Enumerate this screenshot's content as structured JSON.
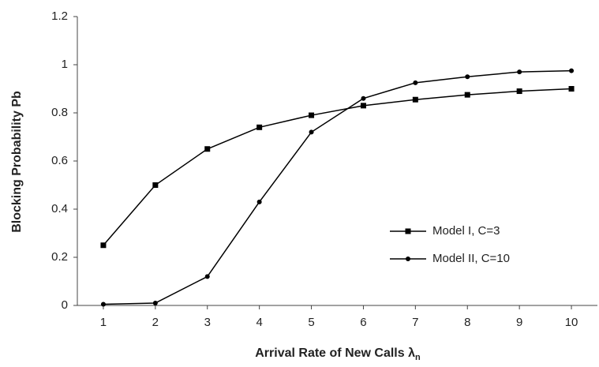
{
  "chart_data": {
    "type": "line",
    "y_label": "Blocking Probability Pb",
    "x_label": {
      "main": "Arrival Rate of New Calls λ",
      "sub": "n"
    },
    "x": [
      1,
      2,
      3,
      4,
      5,
      6,
      7,
      8,
      9,
      10
    ],
    "xlim": [
      0.5,
      10.5
    ],
    "xticks": [
      1,
      2,
      3,
      4,
      5,
      6,
      7,
      8,
      9,
      10
    ],
    "ylim": [
      0,
      1.2
    ],
    "yticks": [
      0,
      0.2,
      0.4,
      0.6,
      0.8,
      1,
      1.2
    ],
    "series": [
      {
        "name": "Model I, C=3",
        "color": "#000000",
        "marker": "square",
        "values": [
          0.25,
          0.5,
          0.65,
          0.74,
          0.79,
          0.83,
          0.855,
          0.875,
          0.89,
          0.9
        ]
      },
      {
        "name": "Model II, C=10",
        "color": "#000000",
        "marker": "circle",
        "values": [
          0.005,
          0.01,
          0.12,
          0.43,
          0.72,
          0.86,
          0.925,
          0.95,
          0.97,
          0.975
        ]
      }
    ],
    "legend": "right"
  }
}
